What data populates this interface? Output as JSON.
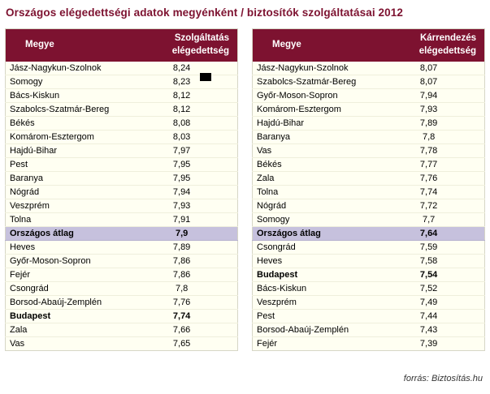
{
  "title": "Országos elégedettségi adatok megyénként / biztosítók szolgáltatásai 2012",
  "footer_source": "forrás: Biztosítás.hu",
  "colors": {
    "header_bg": "#7d1230",
    "title_color": "#7d1230",
    "body_bg": "#fffff2",
    "highlight_bg": "#c6c1dd"
  },
  "chart_data": [
    {
      "type": "table",
      "name": "Szolgáltatás elégedettség megyénként",
      "header": {
        "col_megye": "Megye",
        "col_value": "Szolgáltatás elégedettség"
      },
      "rows": [
        {
          "megye": "Jász-Nagykun-Szolnok",
          "value": "8,24",
          "style": "normal"
        },
        {
          "megye": "Somogy",
          "value": "8,23",
          "style": "normal"
        },
        {
          "megye": "Bács-Kiskun",
          "value": "8,12",
          "style": "normal"
        },
        {
          "megye": "Szabolcs-Szatmár-Bereg",
          "value": "8,12",
          "style": "normal"
        },
        {
          "megye": "Békés",
          "value": "8,08",
          "style": "normal"
        },
        {
          "megye": "Komárom-Esztergom",
          "value": "8,03",
          "style": "normal"
        },
        {
          "megye": "Hajdú-Bihar",
          "value": "7,97",
          "style": "normal"
        },
        {
          "megye": "Pest",
          "value": "7,95",
          "style": "normal"
        },
        {
          "megye": "Baranya",
          "value": "7,95",
          "style": "normal"
        },
        {
          "megye": "Nógrád",
          "value": "7,94",
          "style": "normal"
        },
        {
          "megye": "Veszprém",
          "value": "7,93",
          "style": "normal"
        },
        {
          "megye": "Tolna",
          "value": "7,91",
          "style": "normal"
        },
        {
          "megye": "Országos átlag",
          "value": "7,9",
          "style": "average"
        },
        {
          "megye": "Heves",
          "value": "7,89",
          "style": "normal"
        },
        {
          "megye": "Győr-Moson-Sopron",
          "value": "7,86",
          "style": "normal"
        },
        {
          "megye": "Fejér",
          "value": "7,86",
          "style": "normal"
        },
        {
          "megye": "Csongrád",
          "value": "7,8",
          "style": "normal"
        },
        {
          "megye": "Borsod-Abaúj-Zemplén",
          "value": "7,76",
          "style": "normal"
        },
        {
          "megye": "Budapest",
          "value": "7,74",
          "style": "bold"
        },
        {
          "megye": "Zala",
          "value": "7,66",
          "style": "normal"
        },
        {
          "megye": "Vas",
          "value": "7,65",
          "style": "normal"
        }
      ]
    },
    {
      "type": "table",
      "name": "Kárrendezés elégedettség megyénként",
      "header": {
        "col_megye": "Megye",
        "col_value": "Kárrendezés elégedettség"
      },
      "rows": [
        {
          "megye": "Jász-Nagykun-Szolnok",
          "value": "8,07",
          "style": "normal"
        },
        {
          "megye": "Szabolcs-Szatmár-Bereg",
          "value": "8,07",
          "style": "normal"
        },
        {
          "megye": "Győr-Moson-Sopron",
          "value": "7,94",
          "style": "normal"
        },
        {
          "megye": "Komárom-Esztergom",
          "value": "7,93",
          "style": "normal"
        },
        {
          "megye": "Hajdú-Bihar",
          "value": "7,89",
          "style": "normal"
        },
        {
          "megye": "Baranya",
          "value": "7,8",
          "style": "normal"
        },
        {
          "megye": "Vas",
          "value": "7,78",
          "style": "normal"
        },
        {
          "megye": "Békés",
          "value": "7,77",
          "style": "normal"
        },
        {
          "megye": "Zala",
          "value": "7,76",
          "style": "normal"
        },
        {
          "megye": "Tolna",
          "value": "7,74",
          "style": "normal"
        },
        {
          "megye": "Nógrád",
          "value": "7,72",
          "style": "normal"
        },
        {
          "megye": "Somogy",
          "value": "7,7",
          "style": "normal"
        },
        {
          "megye": "Országos átlag",
          "value": "7,64",
          "style": "average"
        },
        {
          "megye": "Csongrád",
          "value": "7,59",
          "style": "normal"
        },
        {
          "megye": "Heves",
          "value": "7,58",
          "style": "normal"
        },
        {
          "megye": "Budapest",
          "value": "7,54",
          "style": "bold"
        },
        {
          "megye": "Bács-Kiskun",
          "value": "7,52",
          "style": "normal"
        },
        {
          "megye": "Veszprém",
          "value": "7,49",
          "style": "normal"
        },
        {
          "megye": "Pest",
          "value": "7,44",
          "style": "normal"
        },
        {
          "megye": "Borsod-Abaúj-Zemplén",
          "value": "7,43",
          "style": "normal"
        },
        {
          "megye": "Fejér",
          "value": "7,39",
          "style": "normal"
        }
      ]
    }
  ]
}
